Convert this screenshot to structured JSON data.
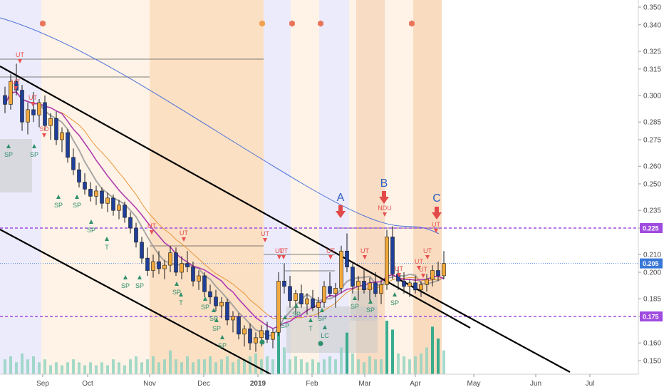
{
  "chart_data": {
    "type": "candlestick",
    "colors": {
      "up": "#f2a93b",
      "down": "#1f3f9a",
      "ma_slow": "#4a6fd8",
      "ma_mid": "#b03ab0",
      "ma_fast": "#9a9a9a",
      "ma_extra": "#e8973a",
      "channel": "#000000",
      "level": "#a04be0",
      "price_line": "#3a78d8",
      "utad_marker": "#e85050",
      "sp_marker": "#2f8f6a",
      "volume": "#2fa88a"
    },
    "y_axis": {
      "ticks": [
        "0.350",
        "0.340",
        "0.325",
        "0.315",
        "0.300",
        "0.285",
        "0.275",
        "0.260",
        "0.250",
        "0.235",
        "0.225",
        "0.210",
        "0.200",
        "0.185",
        "0.175",
        "0.160",
        "0.150"
      ]
    },
    "x_axis": {
      "ticks": [
        "Sep",
        "Oct",
        "Nov",
        "Dec",
        "2019",
        "Feb",
        "Mar",
        "Apr",
        "May",
        "Jun",
        "Jul"
      ]
    },
    "highlighted_levels": [
      {
        "value": "0.225",
        "color": "#a04be0"
      },
      {
        "value": "0.205",
        "color": "#3a78d8"
      },
      {
        "value": "0.175",
        "color": "#a04be0"
      }
    ],
    "callouts": [
      "A",
      "B",
      "C"
    ],
    "labels_red": [
      "UT",
      "UT",
      "UT",
      "SO",
      "UT",
      "UT",
      "UT",
      "UT",
      "UT",
      "UT",
      "UT",
      "NDU",
      "UT",
      "UT",
      "UT",
      "UT",
      "UT"
    ],
    "labels_green": [
      "SP",
      "SP",
      "SP",
      "SP",
      "SP",
      "T",
      "SP",
      "SP",
      "SP",
      "T",
      "SP",
      "SP",
      "SP",
      "SP",
      "SP",
      "SP",
      "T",
      "SP",
      "LC",
      "SP",
      "SP",
      "SP"
    ],
    "candles": [
      [
        0.3,
        0.305,
        0.29,
        0.295
      ],
      [
        0.295,
        0.312,
        0.292,
        0.308
      ],
      [
        0.308,
        0.318,
        0.3,
        0.303
      ],
      [
        0.303,
        0.306,
        0.28,
        0.285
      ],
      [
        0.285,
        0.296,
        0.278,
        0.292
      ],
      [
        0.292,
        0.302,
        0.285,
        0.289
      ],
      [
        0.289,
        0.298,
        0.282,
        0.296
      ],
      [
        0.296,
        0.3,
        0.28,
        0.283
      ],
      [
        0.283,
        0.29,
        0.275,
        0.287
      ],
      [
        0.287,
        0.291,
        0.272,
        0.275
      ],
      [
        0.275,
        0.282,
        0.268,
        0.279
      ],
      [
        0.279,
        0.281,
        0.262,
        0.265
      ],
      [
        0.265,
        0.27,
        0.255,
        0.258
      ],
      [
        0.258,
        0.262,
        0.248,
        0.251
      ],
      [
        0.251,
        0.256,
        0.244,
        0.247
      ],
      [
        0.247,
        0.251,
        0.24,
        0.243
      ],
      [
        0.243,
        0.249,
        0.238,
        0.246
      ],
      [
        0.246,
        0.248,
        0.236,
        0.239
      ],
      [
        0.239,
        0.245,
        0.234,
        0.242
      ],
      [
        0.242,
        0.244,
        0.232,
        0.235
      ],
      [
        0.235,
        0.241,
        0.23,
        0.238
      ],
      [
        0.238,
        0.24,
        0.228,
        0.231
      ],
      [
        0.231,
        0.234,
        0.222,
        0.225
      ],
      [
        0.225,
        0.228,
        0.214,
        0.217
      ],
      [
        0.217,
        0.22,
        0.205,
        0.208
      ],
      [
        0.208,
        0.214,
        0.198,
        0.201
      ],
      [
        0.201,
        0.21,
        0.197,
        0.206
      ],
      [
        0.206,
        0.212,
        0.199,
        0.202
      ],
      [
        0.202,
        0.207,
        0.196,
        0.204
      ],
      [
        0.204,
        0.215,
        0.2,
        0.211
      ],
      [
        0.211,
        0.214,
        0.198,
        0.2
      ],
      [
        0.2,
        0.209,
        0.196,
        0.205
      ],
      [
        0.205,
        0.212,
        0.2,
        0.203
      ],
      [
        0.203,
        0.206,
        0.192,
        0.195
      ],
      [
        0.195,
        0.201,
        0.19,
        0.198
      ],
      [
        0.198,
        0.2,
        0.186,
        0.189
      ],
      [
        0.189,
        0.193,
        0.182,
        0.186
      ],
      [
        0.186,
        0.19,
        0.178,
        0.181
      ],
      [
        0.181,
        0.186,
        0.174,
        0.183
      ],
      [
        0.183,
        0.185,
        0.17,
        0.173
      ],
      [
        0.173,
        0.178,
        0.166,
        0.175
      ],
      [
        0.175,
        0.177,
        0.162,
        0.165
      ],
      [
        0.165,
        0.17,
        0.158,
        0.168
      ],
      [
        0.168,
        0.171,
        0.156,
        0.16
      ],
      [
        0.16,
        0.166,
        0.155,
        0.163
      ],
      [
        0.163,
        0.17,
        0.158,
        0.167
      ],
      [
        0.167,
        0.172,
        0.16,
        0.162
      ],
      [
        0.162,
        0.168,
        0.157,
        0.166
      ],
      [
        0.166,
        0.2,
        0.164,
        0.195
      ],
      [
        0.195,
        0.205,
        0.188,
        0.192
      ],
      [
        0.192,
        0.198,
        0.18,
        0.184
      ],
      [
        0.184,
        0.19,
        0.176,
        0.188
      ],
      [
        0.188,
        0.193,
        0.18,
        0.182
      ],
      [
        0.182,
        0.188,
        0.176,
        0.185
      ],
      [
        0.185,
        0.19,
        0.178,
        0.18
      ],
      [
        0.18,
        0.186,
        0.174,
        0.183
      ],
      [
        0.183,
        0.195,
        0.18,
        0.192
      ],
      [
        0.192,
        0.2,
        0.186,
        0.188
      ],
      [
        0.188,
        0.194,
        0.18,
        0.191
      ],
      [
        0.191,
        0.215,
        0.188,
        0.212
      ],
      [
        0.212,
        0.222,
        0.2,
        0.203
      ],
      [
        0.203,
        0.206,
        0.188,
        0.192
      ],
      [
        0.192,
        0.198,
        0.184,
        0.195
      ],
      [
        0.195,
        0.202,
        0.188,
        0.19
      ],
      [
        0.19,
        0.197,
        0.184,
        0.194
      ],
      [
        0.194,
        0.2,
        0.186,
        0.188
      ],
      [
        0.188,
        0.196,
        0.182,
        0.193
      ],
      [
        0.193,
        0.224,
        0.19,
        0.22
      ],
      [
        0.22,
        0.226,
        0.196,
        0.199
      ],
      [
        0.199,
        0.203,
        0.19,
        0.195
      ],
      [
        0.195,
        0.2,
        0.188,
        0.192
      ],
      [
        0.192,
        0.196,
        0.186,
        0.194
      ],
      [
        0.194,
        0.198,
        0.188,
        0.19
      ],
      [
        0.19,
        0.195,
        0.186,
        0.193
      ],
      [
        0.193,
        0.199,
        0.189,
        0.196
      ],
      [
        0.196,
        0.204,
        0.192,
        0.201
      ],
      [
        0.201,
        0.206,
        0.195,
        0.198
      ],
      [
        0.198,
        0.212,
        0.196,
        0.205
      ]
    ],
    "volume": [
      5,
      6,
      4,
      7,
      5,
      6,
      4,
      5,
      3,
      4,
      3,
      4,
      5,
      4,
      3,
      4,
      3,
      4,
      3,
      5,
      4,
      3,
      5,
      6,
      4,
      5,
      6,
      4,
      5,
      8,
      5,
      4,
      6,
      4,
      5,
      5,
      6,
      4,
      5,
      6,
      4,
      5,
      5,
      6,
      7,
      5,
      6,
      5,
      14,
      9,
      5,
      6,
      5,
      4,
      5,
      4,
      5,
      6,
      5,
      9,
      14,
      7,
      5,
      4,
      6,
      5,
      5,
      18,
      15,
      7,
      6,
      5,
      6,
      7,
      9,
      16,
      12,
      8
    ]
  }
}
